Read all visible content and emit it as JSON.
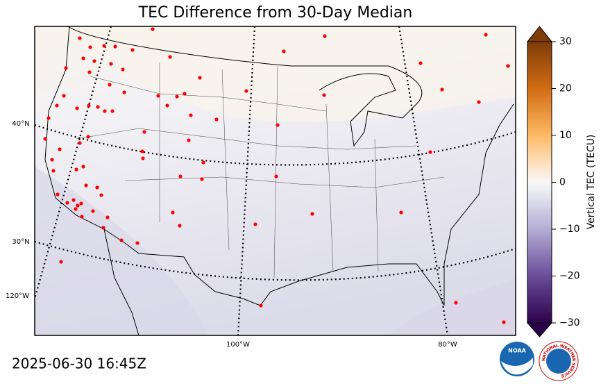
{
  "title": "TEC Difference from 30-Day Median",
  "map": {
    "lat_labels": [
      "40°N",
      "30°N"
    ],
    "lon_labels": [
      "120°W",
      "100°W",
      "80°W"
    ]
  },
  "colorbar": {
    "label": "Vertical TEC (TECU)",
    "lim": [
      -30,
      30
    ],
    "ticks": [
      30,
      20,
      10,
      0,
      {
        "value": -10,
        "label": "−10"
      },
      {
        "value": -20,
        "label": "−20"
      },
      {
        "value": -30,
        "label": "−30"
      }
    ]
  },
  "timestamp": "2025-06-30 16:45Z",
  "logos": {
    "noaa": "NOAA",
    "nws": "NATIONAL WEATHER SERVICE"
  }
}
